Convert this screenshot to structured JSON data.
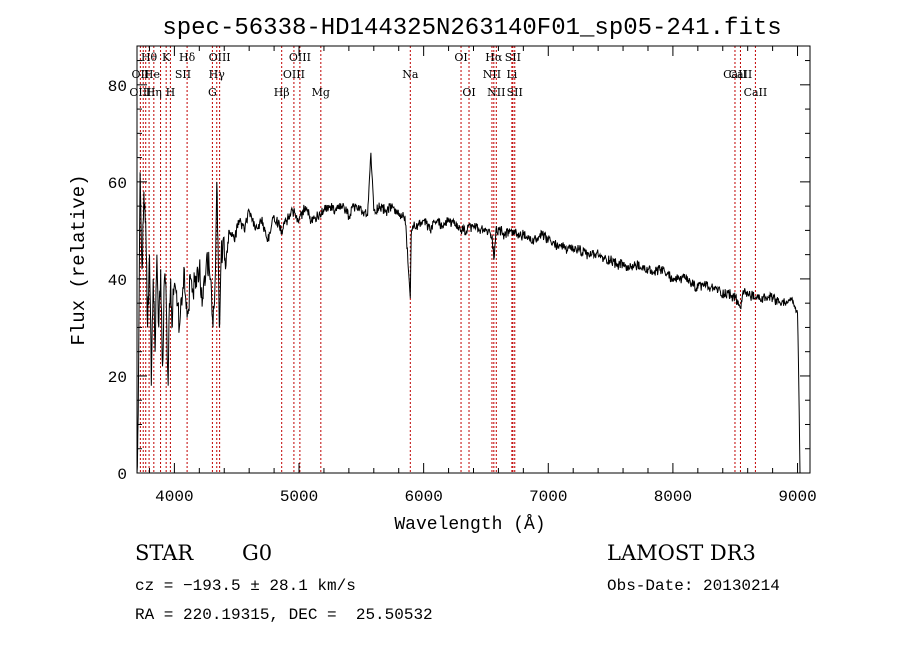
{
  "chart_data": {
    "type": "line",
    "title": "spec-56338-HD144325N263140F01_sp05-241.fits",
    "xlabel": "Wavelength (Å)",
    "ylabel": "Flux (relative)",
    "xlim": [
      3700,
      9100
    ],
    "ylim": [
      0,
      88
    ],
    "x_ticks": [
      4000,
      5000,
      6000,
      7000,
      8000,
      9000
    ],
    "y_ticks": [
      0,
      20,
      40,
      60,
      80
    ],
    "x_tick_labels": [
      "4000",
      "5000",
      "6000",
      "7000",
      "8000",
      "9000"
    ],
    "y_tick_labels": [
      "0",
      "20",
      "40",
      "60",
      "80"
    ],
    "grid": false,
    "series": [
      {
        "name": "spectrum",
        "color": "#000000",
        "noise_seed": 56338,
        "x": [
          3700,
          3710,
          3725,
          3740,
          3755,
          3770,
          3785,
          3800,
          3815,
          3830,
          3845,
          3860,
          3875,
          3890,
          3905,
          3920,
          3935,
          3950,
          3960,
          3970,
          3980,
          3990,
          4010,
          4040,
          4080,
          4102,
          4130,
          4170,
          4200,
          4230,
          4260,
          4290,
          4310,
          4330,
          4340,
          4350,
          4360,
          4375,
          4390,
          4410,
          4440,
          4480,
          4520,
          4560,
          4600,
          4650,
          4700,
          4750,
          4800,
          4861,
          4900,
          4950,
          5000,
          5050,
          5100,
          5150,
          5200,
          5250,
          5300,
          5350,
          5400,
          5450,
          5500,
          5550,
          5577,
          5600,
          5650,
          5700,
          5750,
          5800,
          5850,
          5893,
          5900,
          5920,
          5960,
          6000,
          6050,
          6100,
          6150,
          6200,
          6250,
          6300,
          6350,
          6400,
          6450,
          6500,
          6550,
          6563,
          6580,
          6620,
          6650,
          6700,
          6750,
          6800,
          6850,
          6900,
          6950,
          7000,
          7050,
          7100,
          7150,
          7200,
          7250,
          7300,
          7350,
          7400,
          7450,
          7500,
          7550,
          7600,
          7650,
          7700,
          7750,
          7800,
          7850,
          7900,
          7950,
          8000,
          8050,
          8100,
          8150,
          8200,
          8250,
          8300,
          8350,
          8400,
          8450,
          8500,
          8542,
          8560,
          8600,
          8662,
          8700,
          8750,
          8800,
          8850,
          8900,
          8950,
          8980,
          9000,
          9010,
          9020
        ],
        "y": [
          0,
          12,
          62,
          42,
          58,
          52,
          30,
          45,
          18,
          40,
          25,
          45,
          30,
          42,
          22,
          40,
          35,
          18,
          35,
          40,
          30,
          38,
          38,
          30,
          42,
          32,
          40,
          38,
          42,
          36,
          45,
          40,
          30,
          42,
          60,
          48,
          30,
          44,
          48,
          42,
          50,
          48,
          52,
          50,
          54,
          50,
          52,
          48,
          53,
          50,
          52,
          54,
          52,
          55,
          52,
          53,
          54,
          55,
          54,
          55,
          53,
          55,
          54,
          53,
          66,
          54,
          55,
          54,
          55,
          53,
          53,
          36,
          49,
          51,
          51,
          52,
          50,
          52,
          51,
          52,
          51,
          50,
          50,
          51,
          50,
          50,
          49,
          44,
          50,
          50,
          49,
          50,
          49,
          49,
          48,
          48,
          49,
          48,
          47,
          47,
          46,
          46,
          46,
          45,
          45,
          45,
          44,
          44,
          43,
          43,
          42,
          43,
          42,
          42,
          41,
          42,
          41,
          40,
          40,
          40,
          39,
          38,
          39,
          38,
          38,
          37,
          37,
          36,
          34,
          37,
          37,
          36,
          36,
          36,
          36,
          35,
          35,
          36,
          34,
          33,
          18,
          0
        ]
      }
    ],
    "line_labels_row1": [
      {
        "label": "Hθ",
        "x": 3797
      },
      {
        "label": "K",
        "x": 3934
      },
      {
        "label": "Hδ",
        "x": 4102
      },
      {
        "label": "OIII",
        "x": 4363
      },
      {
        "label": "OIII",
        "x": 5007
      },
      {
        "label": "OI",
        "x": 6300
      },
      {
        "label": "Hα",
        "x": 6563
      },
      {
        "label": "SII",
        "x": 6716
      }
    ],
    "line_labels_row2": [
      {
        "label": "OII",
        "x": 3727
      },
      {
        "label": "He",
        "x": 3820
      },
      {
        "label": "SII",
        "x": 4069
      },
      {
        "label": "Hγ",
        "x": 4340
      },
      {
        "label": "OIII",
        "x": 4959
      },
      {
        "label": "Na",
        "x": 5893
      },
      {
        "label": "NII",
        "x": 6548
      },
      {
        "label": "Li",
        "x": 6708
      },
      {
        "label": "CaII",
        "x": 8542
      },
      {
        "label": "CaII",
        "x": 8498
      }
    ],
    "line_labels_row3": [
      {
        "label": "OIII",
        "x": 3727
      },
      {
        "label": "Hη",
        "x": 3835
      },
      {
        "label": "H",
        "x": 3968
      },
      {
        "label": "G",
        "x": 4305
      },
      {
        "label": "Hβ",
        "x": 4861
      },
      {
        "label": "Mg",
        "x": 5175
      },
      {
        "label": "OI",
        "x": 6364
      },
      {
        "label": "NII",
        "x": 6583
      },
      {
        "label": "SII",
        "x": 6731
      },
      {
        "label": "CaII",
        "x": 8662
      }
    ],
    "line_markers": [
      3727,
      3750,
      3770,
      3797,
      3835,
      3889,
      3934,
      3968,
      4102,
      4305,
      4340,
      4363,
      4861,
      4959,
      5007,
      5175,
      5893,
      6300,
      6364,
      6548,
      6563,
      6583,
      6708,
      6716,
      6731,
      8498,
      8542,
      8662
    ],
    "marker_color": "#c00000"
  },
  "info": {
    "class_label": "STAR",
    "subclass_label": "G0",
    "survey": "LAMOST DR3",
    "cz_text": "cz = −193.5 ± 28.1 km/s",
    "obs_date_text": "Obs-Date: 20130214",
    "radec_text": "RA = 220.19315, DEC =  25.50532"
  }
}
